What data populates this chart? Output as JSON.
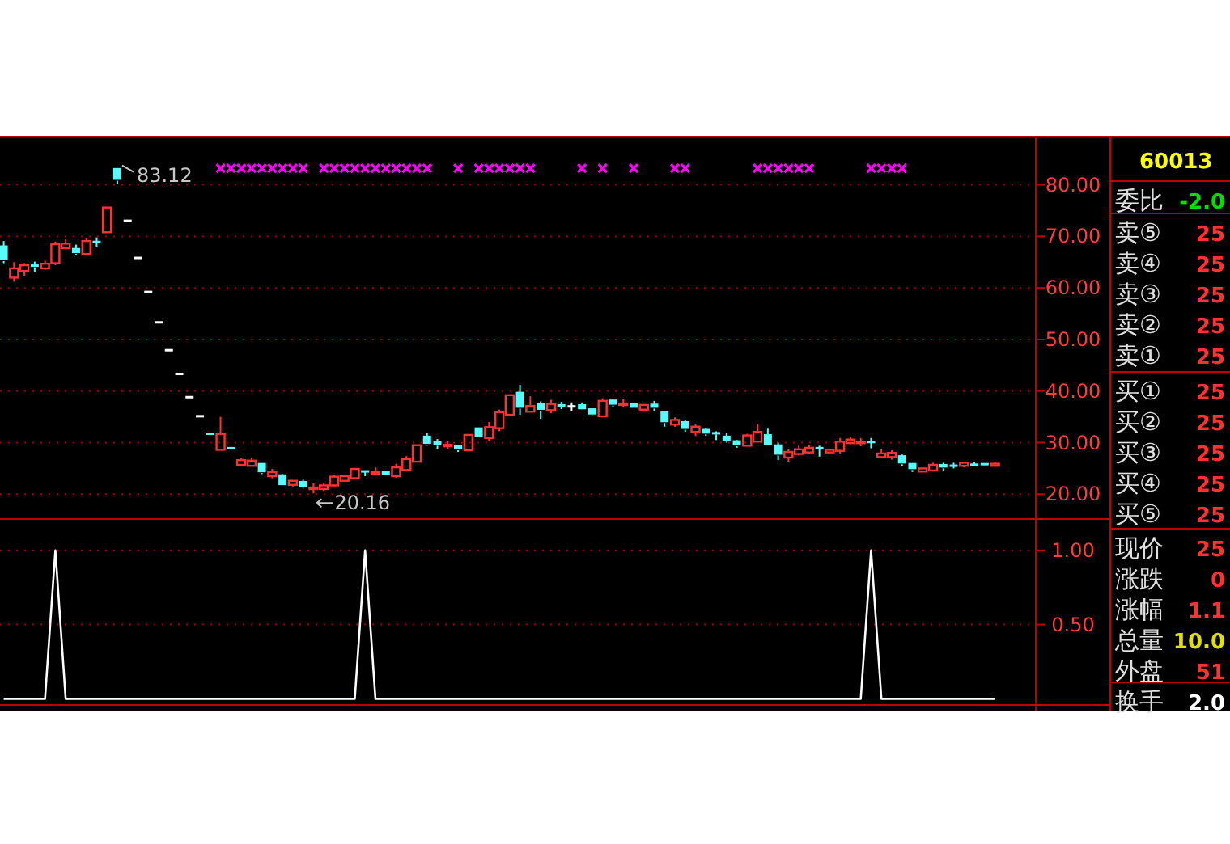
{
  "chart_data": [
    {
      "type": "candlestick",
      "categories": [
        null,
        null,
        null,
        null,
        null,
        null,
        null,
        null,
        null,
        null,
        null,
        null,
        null,
        null,
        null,
        null,
        null,
        null,
        null,
        null,
        null,
        null,
        null,
        null,
        null,
        null,
        null,
        null,
        null,
        null,
        null,
        null,
        null,
        null,
        null,
        null,
        null,
        null,
        null,
        null,
        null,
        null,
        null,
        null,
        null,
        null,
        null,
        null,
        null,
        null,
        null,
        null,
        null,
        null,
        null,
        null,
        null,
        null,
        null,
        null,
        null,
        null,
        null,
        null,
        null,
        null,
        null,
        null,
        null,
        null,
        null,
        null,
        null,
        null,
        null,
        null,
        null,
        null,
        null,
        null,
        null,
        null,
        null,
        null,
        null,
        null,
        null,
        null,
        null,
        null,
        null,
        null,
        null,
        null,
        null,
        null,
        null
      ],
      "ohlc": [
        [
          68.1,
          69.1,
          64.8,
          65.2
        ],
        [
          62.0,
          65.0,
          61.2,
          63.8
        ],
        [
          63.3,
          64.8,
          62.3,
          64.4
        ],
        [
          64.4,
          65.1,
          63.1,
          64.0
        ],
        [
          63.8,
          65.3,
          63.5,
          64.7
        ],
        [
          64.8,
          69.0,
          64.4,
          68.5
        ],
        [
          67.7,
          69.4,
          67.6,
          68.6
        ],
        [
          67.6,
          68.4,
          66.3,
          66.6
        ],
        [
          66.6,
          69.6,
          66.4,
          69.1
        ],
        [
          69.0,
          69.8,
          67.9,
          68.7
        ],
        [
          70.8,
          75.6,
          70.8,
          75.6
        ],
        [
          83.1,
          83.12,
          80.1,
          80.8
        ],
        [
          73.1,
          73.1,
          73.1,
          73.1
        ],
        [
          65.9,
          65.9,
          65.9,
          65.9
        ],
        [
          59.3,
          59.3,
          59.3,
          59.3
        ],
        [
          53.4,
          53.4,
          53.4,
          53.4
        ],
        [
          48.0,
          48.0,
          48.0,
          48.0
        ],
        [
          43.4,
          43.4,
          43.4,
          43.4
        ],
        [
          38.9,
          38.9,
          38.9,
          38.9
        ],
        [
          35.2,
          35.2,
          35.2,
          35.2
        ],
        [
          31.8,
          31.8,
          31.7,
          31.7
        ],
        [
          28.6,
          35.0,
          28.6,
          31.7
        ],
        [
          29.0,
          29.0,
          28.6,
          28.6
        ],
        [
          25.7,
          27.1,
          25.7,
          26.6
        ],
        [
          25.5,
          27.0,
          25.5,
          26.5
        ],
        [
          25.9,
          25.9,
          23.9,
          24.1
        ],
        [
          23.5,
          24.9,
          23.1,
          24.3
        ],
        [
          23.7,
          23.9,
          21.6,
          21.6
        ],
        [
          21.8,
          22.6,
          21.5,
          22.6
        ],
        [
          22.4,
          22.8,
          21.1,
          21.2
        ],
        [
          21.2,
          22.1,
          20.16,
          21.3
        ],
        [
          21.0,
          22.1,
          20.6,
          21.7
        ],
        [
          21.7,
          23.7,
          21.5,
          23.4
        ],
        [
          22.6,
          23.7,
          22.6,
          23.5
        ],
        [
          23.1,
          25.1,
          23.1,
          24.9
        ],
        [
          24.5,
          24.5,
          23.5,
          24.3
        ],
        [
          24.2,
          25.2,
          24.2,
          24.3
        ],
        [
          24.3,
          24.5,
          23.5,
          23.5
        ],
        [
          23.5,
          25.9,
          23.2,
          25.2
        ],
        [
          24.7,
          27.4,
          24.4,
          26.8
        ],
        [
          26.3,
          29.5,
          26.3,
          29.5
        ],
        [
          31.2,
          31.8,
          29.4,
          29.6
        ],
        [
          30.1,
          30.7,
          28.8,
          29.4
        ],
        [
          29.5,
          30.3,
          28.8,
          29.6
        ],
        [
          29.3,
          29.3,
          28.2,
          28.5
        ],
        [
          28.5,
          31.5,
          28.5,
          31.5
        ],
        [
          32.8,
          32.8,
          31.0,
          31.0
        ],
        [
          30.9,
          34.0,
          30.4,
          33.0
        ],
        [
          32.8,
          36.4,
          32.2,
          35.9
        ],
        [
          35.4,
          39.2,
          35.4,
          39.2
        ],
        [
          39.7,
          41.2,
          35.4,
          36.6
        ],
        [
          36.0,
          39.0,
          36.0,
          37.1
        ],
        [
          37.5,
          38.0,
          34.6,
          36.2
        ],
        [
          36.3,
          38.3,
          35.7,
          37.5
        ],
        [
          37.3,
          37.9,
          36.5,
          37.2
        ],
        [
          37.1,
          37.8,
          36.2,
          37.1
        ],
        [
          37.3,
          37.8,
          36.3,
          36.3
        ],
        [
          36.5,
          36.5,
          35.1,
          35.3
        ],
        [
          35.1,
          38.6,
          35.1,
          38.1
        ],
        [
          38.2,
          38.5,
          37.0,
          37.2
        ],
        [
          37.5,
          38.4,
          36.8,
          37.6
        ],
        [
          37.5,
          37.5,
          36.6,
          36.6
        ],
        [
          36.4,
          37.5,
          36.0,
          37.3
        ],
        [
          37.4,
          38.1,
          36.1,
          36.6
        ],
        [
          35.9,
          36.1,
          33.1,
          33.8
        ],
        [
          33.5,
          34.9,
          33.1,
          34.4
        ],
        [
          34.0,
          34.4,
          32.1,
          32.5
        ],
        [
          32.1,
          33.7,
          31.3,
          33.1
        ],
        [
          32.5,
          32.8,
          31.3,
          31.6
        ],
        [
          31.9,
          32.2,
          30.5,
          31.6
        ],
        [
          31.2,
          31.8,
          30.0,
          30.2
        ],
        [
          30.3,
          30.5,
          29.0,
          29.3
        ],
        [
          29.4,
          31.7,
          29.4,
          31.4
        ],
        [
          30.2,
          33.6,
          30.1,
          32.1
        ],
        [
          31.5,
          32.7,
          29.4,
          29.4
        ],
        [
          29.5,
          30.0,
          26.6,
          27.5
        ],
        [
          27.1,
          28.7,
          26.3,
          28.2
        ],
        [
          27.8,
          29.4,
          27.5,
          28.7
        ],
        [
          28.1,
          29.6,
          27.9,
          29.0
        ],
        [
          29.0,
          29.4,
          27.3,
          28.8
        ],
        [
          28.1,
          28.7,
          28.1,
          28.6
        ],
        [
          28.4,
          30.9,
          27.9,
          30.2
        ],
        [
          29.9,
          31.1,
          29.7,
          30.6
        ],
        [
          30.1,
          30.9,
          29.3,
          30.2
        ],
        [
          30.2,
          30.9,
          28.9,
          30.1
        ],
        [
          27.2,
          28.8,
          27.2,
          27.9
        ],
        [
          27.2,
          28.5,
          26.7,
          28.0
        ],
        [
          27.4,
          27.7,
          25.5,
          25.8
        ],
        [
          25.9,
          25.9,
          24.3,
          24.7
        ],
        [
          24.4,
          25.0,
          24.4,
          25.0
        ],
        [
          24.6,
          26.1,
          24.4,
          25.7
        ],
        [
          25.7,
          26.1,
          24.6,
          25.0
        ],
        [
          25.6,
          26.1,
          25.0,
          25.5
        ],
        [
          25.5,
          26.3,
          25.2,
          26.1
        ],
        [
          25.8,
          26.2,
          25.4,
          25.7
        ],
        [
          25.9,
          25.9,
          25.5,
          25.5
        ],
        [
          25.5,
          26.2,
          25.4,
          25.9
        ]
      ],
      "colors": [
        "#54fcfc",
        "#ff3232",
        "#ff3232",
        "#54fcfc",
        "#ff3232",
        "#ff3232",
        "#ff3232",
        "#54fcfc",
        "#ff3232",
        "#54fcfc",
        "#ff3232",
        "#54fcfc",
        "#ffffff",
        "#ffffff",
        "#ffffff",
        "#ffffff",
        "#ffffff",
        "#ffffff",
        "#ffffff",
        "#ffffff",
        "#54fcfc",
        "#ff3232",
        "#54fcfc",
        "#ff3232",
        "#ff3232",
        "#54fcfc",
        "#ff3232",
        "#54fcfc",
        "#ff3232",
        "#54fcfc",
        "#ff3232",
        "#ff3232",
        "#ff3232",
        "#ff3232",
        "#ff3232",
        "#54fcfc",
        "#ff3232",
        "#54fcfc",
        "#ff3232",
        "#ff3232",
        "#ff3232",
        "#54fcfc",
        "#54fcfc",
        "#ff3232",
        "#54fcfc",
        "#ff3232",
        "#54fcfc",
        "#ff3232",
        "#ff3232",
        "#ff3232",
        "#54fcfc",
        "#ff3232",
        "#54fcfc",
        "#ff3232",
        "#54fcfc",
        "#ffffff",
        "#54fcfc",
        "#54fcfc",
        "#ff3232",
        "#54fcfc",
        "#ff3232",
        "#54fcfc",
        "#ff3232",
        "#54fcfc",
        "#54fcfc",
        "#ff3232",
        "#54fcfc",
        "#ff3232",
        "#54fcfc",
        "#54fcfc",
        "#54fcfc",
        "#54fcfc",
        "#ff3232",
        "#ff3232",
        "#54fcfc",
        "#54fcfc",
        "#ff3232",
        "#ff3232",
        "#ff3232",
        "#54fcfc",
        "#ff3232",
        "#ff3232",
        "#ff3232",
        "#ff3232",
        "#54fcfc",
        "#ff3232",
        "#ff3232",
        "#54fcfc",
        "#54fcfc",
        "#ff3232",
        "#ff3232",
        "#54fcfc",
        "#54fcfc",
        "#ff3232",
        "#54fcfc",
        "#54fcfc",
        "#ff3232"
      ],
      "series": [
        {
          "type": "scatter",
          "color": "#ff00ff",
          "values": [
            null,
            null,
            null,
            null,
            null,
            null,
            null,
            null,
            null,
            null,
            null,
            null,
            null,
            null,
            null,
            null,
            null,
            null,
            null,
            null,
            null,
            83.2,
            83.2,
            83.2,
            83.2,
            83.2,
            83.2,
            83.2,
            83.2,
            83.2,
            null,
            83.2,
            83.2,
            83.2,
            83.2,
            83.2,
            83.2,
            83.2,
            83.2,
            83.2,
            83.2,
            83.2,
            null,
            null,
            83.2,
            null,
            83.2,
            83.2,
            83.2,
            83.2,
            83.2,
            83.2,
            null,
            null,
            null,
            null,
            83.2,
            null,
            83.2,
            null,
            null,
            83.2,
            null,
            null,
            null,
            83.2,
            83.2,
            null,
            null,
            null,
            null,
            null,
            null,
            83.2,
            83.2,
            83.2,
            83.2,
            83.2,
            83.2,
            null,
            null,
            null,
            null,
            null,
            83.2,
            83.2,
            83.2,
            83.2,
            null,
            null,
            null,
            null,
            null,
            null,
            null,
            null,
            null
          ]
        }
      ],
      "marker": "cross",
      "ylim": [
        15.5,
        89.5
      ],
      "yticks": [
        {
          "value": 20,
          "label": "20.00"
        },
        {
          "value": 30,
          "label": "30.00"
        },
        {
          "value": 40,
          "label": "40.00"
        },
        {
          "value": 50,
          "label": "50.00"
        },
        {
          "value": 60,
          "label": "60.00"
        },
        {
          "value": 70,
          "label": "70.00"
        },
        {
          "value": 80,
          "label": "80.00"
        }
      ],
      "grid": "y",
      "annotations": [
        "83.12",
        "20.16"
      ]
    },
    {
      "type": "line",
      "categories": [
        null,
        null,
        null,
        null,
        null,
        null,
        null,
        null,
        null,
        null,
        null,
        null,
        null,
        null,
        null,
        null,
        null,
        null,
        null,
        null,
        null,
        null,
        null,
        null,
        null,
        null,
        null,
        null,
        null,
        null,
        null,
        null,
        null,
        null,
        null,
        null,
        null,
        null,
        null,
        null,
        null,
        null,
        null,
        null,
        null,
        null,
        null,
        null,
        null,
        null,
        null,
        null,
        null,
        null,
        null,
        null,
        null,
        null,
        null,
        null,
        null,
        null,
        null,
        null,
        null,
        null,
        null,
        null,
        null,
        null,
        null,
        null,
        null,
        null,
        null,
        null,
        null,
        null,
        null,
        null,
        null,
        null,
        null,
        null,
        null,
        null,
        null,
        null,
        null,
        null,
        null,
        null,
        null,
        null,
        null,
        null,
        null
      ],
      "series": [
        {
          "color": "#ffffff",
          "values": [
            0,
            0,
            0,
            0,
            0,
            1,
            0,
            0,
            0,
            0,
            0,
            0,
            0,
            0,
            0,
            0,
            0,
            0,
            0,
            0,
            0,
            0,
            0,
            0,
            0,
            0,
            0,
            0,
            0,
            0,
            0,
            0,
            0,
            0,
            0,
            1,
            0,
            0,
            0,
            0,
            0,
            0,
            0,
            0,
            0,
            0,
            0,
            0,
            0,
            0,
            0,
            0,
            0,
            0,
            0,
            0,
            0,
            0,
            0,
            0,
            0,
            0,
            0,
            0,
            0,
            0,
            0,
            0,
            0,
            0,
            0,
            0,
            0,
            0,
            0,
            0,
            0,
            0,
            0,
            0,
            0,
            0,
            0,
            0,
            1,
            0,
            0,
            0,
            0,
            0,
            0,
            0,
            0,
            0,
            0,
            0,
            0
          ]
        }
      ],
      "ylim": [
        -0.03,
        1.2
      ],
      "yticks": [
        {
          "value": 0.5,
          "label": "0.50"
        },
        {
          "value": 1,
          "label": "1.00"
        }
      ],
      "grid": "y"
    },
    {
      "type": "other",
      "annotations": [
        "60013",
        "委比",
        "-2.0",
        "卖⑤",
        "25",
        "卖④",
        "25",
        "卖③",
        "25",
        "卖②",
        "25",
        "卖①",
        "25",
        "买①",
        "25",
        "买②",
        "25",
        "买③",
        "25",
        "买④",
        "25",
        "买⑤",
        "25",
        "现价",
        "25",
        "涨跌",
        "0",
        "涨幅",
        "1.1",
        "总量",
        "10.0",
        "外盘",
        "51",
        "换手",
        "2.0"
      ]
    }
  ]
}
